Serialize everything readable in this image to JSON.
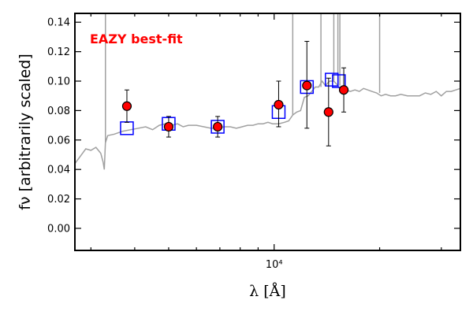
{
  "chart_data": {
    "type": "scatter",
    "title": "",
    "annotation": "EAZY best-fit",
    "annotation_color": "#ff0000",
    "xlabel": "λ [Å]",
    "ylabel": "fν [arbitrarily scaled]",
    "x_scale": "log",
    "xlim": [
      2700,
      34000
    ],
    "ylim": [
      -0.015,
      0.146
    ],
    "x_tick_labels": [
      {
        "value": 10000,
        "label": "10⁴"
      }
    ],
    "y_ticks": [
      0.0,
      0.02,
      0.04,
      0.06,
      0.08,
      0.1,
      0.12,
      0.14
    ],
    "y_tick_labels": [
      "0.00",
      "0.02",
      "0.04",
      "0.06",
      "0.08",
      "0.10",
      "0.12",
      "0.14"
    ],
    "grid": false,
    "colors": {
      "template": "#a0a0a0",
      "model": "#0000ff",
      "observed_fill": "#ff0000",
      "observed_edge": "#000000",
      "axes": "#000000"
    },
    "series": [
      {
        "role": "template",
        "kind": "line",
        "x": [
          2700,
          2800,
          2900,
          3000,
          3100,
          3200,
          3250,
          3275,
          3300,
          3350,
          3500,
          3700,
          3900,
          4100,
          4300,
          4500,
          4700,
          4900,
          5100,
          5300,
          5500,
          5700,
          6000,
          6300,
          6600,
          6900,
          7200,
          7500,
          7800,
          8100,
          8400,
          8700,
          9000,
          9300,
          9600,
          9900,
          10300,
          10700,
          11000,
          11300,
          11600,
          11900,
          12200,
          12500,
          12800,
          13100,
          13400,
          13700,
          14000,
          14400,
          14800,
          15200,
          15600,
          16000,
          16500,
          17000,
          17500,
          18000,
          18500,
          19000,
          19600,
          20200,
          20800,
          21500,
          22200,
          23000,
          24000,
          25000,
          26000,
          27000,
          28000,
          29000,
          30000,
          31000,
          32000,
          33000,
          34000
        ],
        "y": [
          0.044,
          0.049,
          0.054,
          0.053,
          0.055,
          0.051,
          0.045,
          0.04,
          0.058,
          0.063,
          0.064,
          0.066,
          0.067,
          0.068,
          0.069,
          0.067,
          0.07,
          0.071,
          0.07,
          0.071,
          0.069,
          0.07,
          0.07,
          0.069,
          0.068,
          0.068,
          0.069,
          0.069,
          0.068,
          0.069,
          0.07,
          0.07,
          0.071,
          0.071,
          0.072,
          0.071,
          0.071,
          0.072,
          0.073,
          0.077,
          0.079,
          0.08,
          0.089,
          0.09,
          0.093,
          0.096,
          0.096,
          0.1,
          0.097,
          0.1,
          0.1,
          0.097,
          0.092,
          0.094,
          0.093,
          0.094,
          0.093,
          0.095,
          0.094,
          0.093,
          0.092,
          0.09,
          0.091,
          0.09,
          0.09,
          0.091,
          0.09,
          0.09,
          0.09,
          0.092,
          0.091,
          0.093,
          0.09,
          0.093,
          0.093,
          0.094,
          0.095
        ]
      },
      {
        "role": "template_emission_lines",
        "kind": "spikes",
        "x": [
          3300,
          11300,
          13600,
          14800,
          15200,
          15400,
          20000
        ],
        "y": [
          0.146,
          0.146,
          0.146,
          0.146,
          0.146,
          0.146,
          0.146
        ]
      },
      {
        "role": "model_photometry",
        "kind": "square",
        "x": [
          3800,
          5000,
          6900,
          10300,
          12400,
          14600,
          15300
        ],
        "y": [
          0.068,
          0.071,
          0.069,
          0.079,
          0.096,
          0.101,
          0.1
        ]
      },
      {
        "role": "observed_photometry",
        "kind": "errorbar",
        "x": [
          3800,
          5000,
          6900,
          10300,
          12400,
          14300,
          15800
        ],
        "y": [
          0.083,
          0.069,
          0.069,
          0.084,
          0.097,
          0.079,
          0.094
        ],
        "err_low": [
          0.011,
          0.007,
          0.007,
          0.015,
          0.029,
          0.023,
          0.015
        ],
        "err_high": [
          0.011,
          0.007,
          0.007,
          0.016,
          0.03,
          0.023,
          0.015
        ]
      }
    ]
  }
}
